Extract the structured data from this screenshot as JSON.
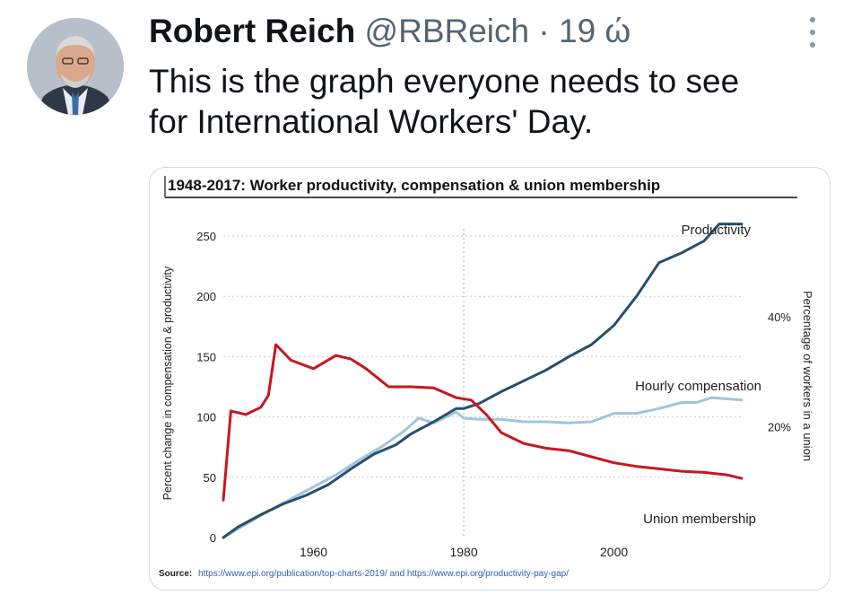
{
  "tweet": {
    "author_name": "Robert Reich",
    "author_handle": "@RBReich",
    "separator": "·",
    "timestamp": "19 ώ",
    "text_lines": [
      "This is the graph everyone needs to see",
      "for International Workers' Day."
    ]
  },
  "icons": {
    "more": "more-vertical-icon",
    "avatar": "avatar-photo"
  },
  "colors": {
    "productivity": "#274f6e",
    "compensation": "#9fc5de",
    "union": "#c8161d",
    "text": "#0f1419",
    "muted": "#536471"
  },
  "chart_data": {
    "type": "line",
    "title": "1948-2017: Worker productivity, compensation & union membership",
    "ylabel": "Percent change in compensation & productivity",
    "y2label": "Percentage of workers in a union",
    "source_label": "Source:",
    "source_text": "https://www.epi.org/publication/top-charts-2019/ and https://www.epi.org/productivity-pay-gap/",
    "xlim": [
      1948,
      2017
    ],
    "ylim": [
      0,
      250
    ],
    "x_ticks": [
      1960,
      1980,
      2000
    ],
    "y_ticks": [
      0,
      50,
      100,
      150,
      200,
      250
    ],
    "y2_ticks": [
      {
        "label": "40%",
        "value": 40
      },
      {
        "label": "20%",
        "value": 20
      }
    ],
    "y2_scale": {
      "pct_a": 40,
      "left_a": 183,
      "pct_b": 20,
      "left_b": 92
    },
    "grid": true,
    "legend": "direct-labels",
    "series": [
      {
        "name": "Productivity",
        "x": [
          1948,
          1950,
          1953,
          1956,
          1959,
          1962,
          1965,
          1968,
          1971,
          1973,
          1976,
          1979,
          1980,
          1982,
          1985,
          1988,
          1991,
          1994,
          1997,
          2000,
          2003,
          2006,
          2009,
          2012,
          2014,
          2017
        ],
        "values": [
          0,
          9,
          19,
          28,
          35,
          44,
          57,
          69,
          77,
          86,
          96,
          107,
          107,
          111,
          121,
          130,
          139,
          150,
          160,
          176,
          200,
          228,
          236,
          246,
          260,
          260
        ]
      },
      {
        "name": "Hourly compensation",
        "x": [
          1948,
          1951,
          1954,
          1957,
          1960,
          1963,
          1966,
          1969,
          1972,
          1974,
          1976,
          1978,
          1979,
          1980,
          1982,
          1985,
          1988,
          1991,
          1994,
          1997,
          2000,
          2003,
          2006,
          2009,
          2011,
          2013,
          2015,
          2017
        ],
        "values": [
          0,
          11,
          22,
          32,
          42,
          52,
          64,
          75,
          88,
          99,
          95,
          101,
          104,
          99,
          98,
          98,
          96,
          96,
          95,
          96,
          103,
          103,
          107,
          112,
          112,
          116,
          115,
          114
        ]
      },
      {
        "name": "Union membership",
        "x": [
          1948,
          1949,
          1951,
          1953,
          1954,
          1955,
          1957,
          1960,
          1963,
          1965,
          1967,
          1970,
          1973,
          1976,
          1979,
          1981,
          1983,
          1985,
          1988,
          1991,
          1994,
          1997,
          2000,
          2003,
          2006,
          2009,
          2012,
          2015,
          2017
        ],
        "values": [
          31,
          105,
          102,
          108,
          118,
          160,
          147,
          140,
          151,
          148,
          140,
          125,
          125,
          124,
          116,
          114,
          102,
          87,
          78,
          74,
          72,
          67,
          62,
          59,
          57,
          55,
          54,
          52,
          49
        ]
      }
    ]
  }
}
